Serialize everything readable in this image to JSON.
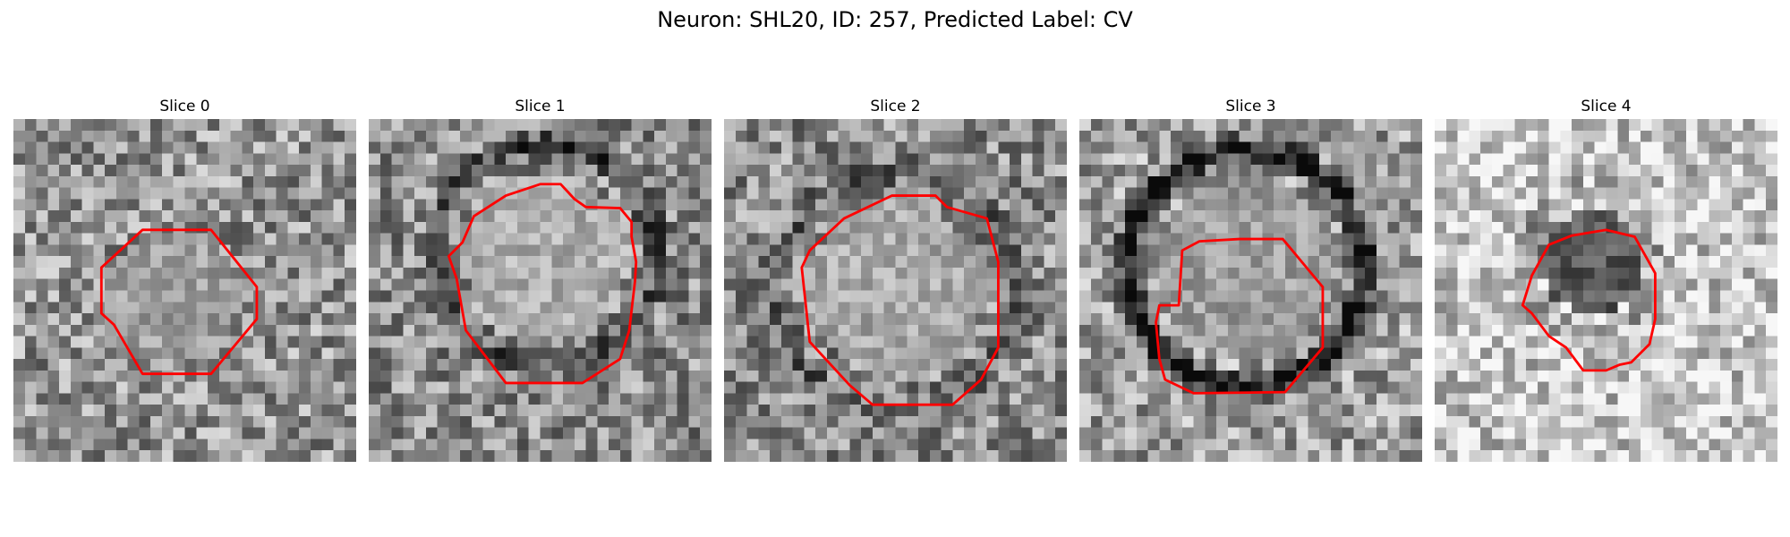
{
  "figure": {
    "title": "Neuron: SHL20, ID: 257, Predicted Label: CV",
    "contour_color": "#ff0000"
  },
  "panels": [
    {
      "title": "Slice 0"
    },
    {
      "title": "Slice 1"
    },
    {
      "title": "Slice 2"
    },
    {
      "title": "Slice 3"
    },
    {
      "title": "Slice 4"
    }
  ]
}
